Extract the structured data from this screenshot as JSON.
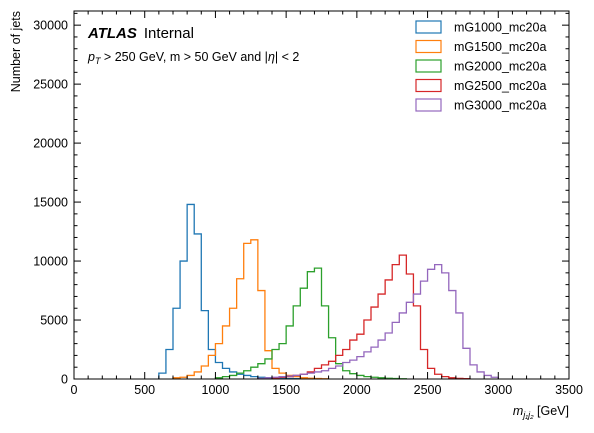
{
  "chart_data": {
    "type": "histogram",
    "xlabel": "m_{j1j2} [GeV]",
    "xlabel_parts": {
      "main": "m",
      "sub": "j₁j₂",
      "unit": " [GeV]"
    },
    "ylabel": "Number of jets",
    "xlim": [
      0,
      3500
    ],
    "ylim": [
      0,
      31200
    ],
    "x_ticks": [
      0,
      500,
      1000,
      1500,
      2000,
      2500,
      3000,
      3500
    ],
    "y_ticks": [
      0,
      5000,
      10000,
      15000,
      20000,
      25000,
      30000
    ],
    "x_tick_labels": [
      "0",
      "500",
      "1000",
      "1500",
      "2000",
      "2500",
      "3000",
      "3500"
    ],
    "y_tick_labels": [
      "0",
      "5000",
      "10000",
      "15000",
      "20000",
      "25000",
      "30000"
    ],
    "grid": false,
    "legend_position": "top-right",
    "annotations": {
      "experiment": "ATLAS",
      "status": "Internal",
      "selection_parts": [
        "p",
        "T",
        " > 250 GeV, m > 50 GeV and |",
        "η",
        "| < 2"
      ]
    },
    "bin_width": 50,
    "series": [
      {
        "name": "mG1000_mc20a",
        "color": "#1f77b4",
        "start": 600,
        "values": [
          500,
          2500,
          6000,
          10000,
          14800,
          12300,
          5800,
          2500,
          1400,
          900,
          600,
          400,
          300,
          200,
          150,
          100,
          80,
          60,
          40,
          30,
          20
        ]
      },
      {
        "name": "mG1500_mc20a",
        "color": "#ff7f0e",
        "start": 700,
        "values": [
          100,
          150,
          300,
          600,
          1100,
          2000,
          3000,
          4500,
          6000,
          8500,
          11500,
          11800,
          7500,
          2400,
          900,
          500,
          300,
          200,
          100,
          60,
          40,
          20
        ]
      },
      {
        "name": "mG2000_mc20a",
        "color": "#2ca02c",
        "start": 1000,
        "values": [
          100,
          200,
          300,
          500,
          700,
          1000,
          1300,
          1700,
          2500,
          3000,
          4500,
          6200,
          7700,
          9100,
          9400,
          6200,
          3500,
          1300,
          700,
          450,
          300,
          200,
          150,
          100,
          60,
          40,
          20
        ]
      },
      {
        "name": "mG2500_mc20a",
        "color": "#d62728",
        "start": 1400,
        "values": [
          80,
          150,
          200,
          300,
          400,
          600,
          900,
          1200,
          1500,
          2000,
          2500,
          3300,
          3800,
          5000,
          6100,
          7200,
          8400,
          9700,
          10500,
          8900,
          6200,
          2500,
          900,
          400,
          200,
          100,
          50,
          30
        ]
      },
      {
        "name": "mG3000_mc20a",
        "color": "#9467bd",
        "start": 1300,
        "values": [
          50,
          100,
          150,
          200,
          250,
          300,
          400,
          500,
          600,
          700,
          900,
          1100,
          1400,
          1600,
          1900,
          2300,
          2700,
          3300,
          3900,
          4800,
          5600,
          6500,
          7200,
          8300,
          9300,
          9700,
          9000,
          7500,
          5600,
          2600,
          1200,
          600,
          300,
          150
        ]
      }
    ]
  }
}
